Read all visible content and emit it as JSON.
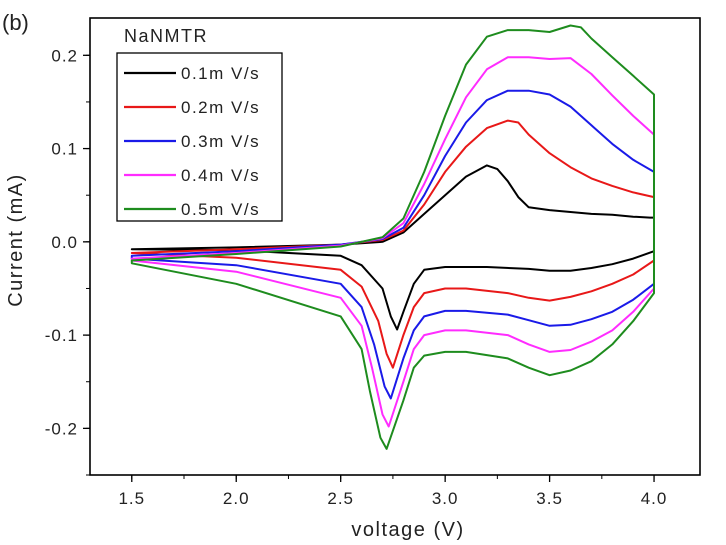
{
  "chart_data": {
    "type": "line",
    "panel_label": "(b)",
    "title": "",
    "legend_title": "NaNMTR",
    "xlabel": "voltage (V)",
    "ylabel": "Current (mA)",
    "xlim": [
      1.3,
      4.22
    ],
    "ylim": [
      -0.25,
      0.24
    ],
    "xticks": [
      1.5,
      2.0,
      2.5,
      3.0,
      3.5,
      4.0
    ],
    "xtick_labels": [
      "1.5",
      "2.0",
      "2.5",
      "3.0",
      "3.5",
      "4.0"
    ],
    "yticks": [
      -0.2,
      -0.1,
      0.0,
      0.1,
      0.2
    ],
    "ytick_labels": [
      "-0.2",
      "-0.1",
      "0.0",
      "0.1",
      "0.2"
    ],
    "grid": false,
    "legend_position": "top-left",
    "series": [
      {
        "name": "0.1m V/s",
        "color": "#000000",
        "anodic": [
          [
            1.5,
            -0.008
          ],
          [
            2.0,
            -0.006
          ],
          [
            2.5,
            -0.003
          ],
          [
            2.7,
            0.0
          ],
          [
            2.8,
            0.01
          ],
          [
            2.9,
            0.03
          ],
          [
            3.0,
            0.05
          ],
          [
            3.1,
            0.07
          ],
          [
            3.2,
            0.082
          ],
          [
            3.25,
            0.078
          ],
          [
            3.3,
            0.065
          ],
          [
            3.35,
            0.048
          ],
          [
            3.4,
            0.037
          ],
          [
            3.5,
            0.034
          ],
          [
            3.6,
            0.032
          ],
          [
            3.7,
            0.03
          ],
          [
            3.8,
            0.029
          ],
          [
            3.9,
            0.027
          ],
          [
            3.98,
            0.026
          ],
          [
            4.0,
            0.026
          ]
        ],
        "cathodic": [
          [
            4.0,
            -0.01
          ],
          [
            3.9,
            -0.018
          ],
          [
            3.8,
            -0.024
          ],
          [
            3.7,
            -0.028
          ],
          [
            3.6,
            -0.031
          ],
          [
            3.5,
            -0.031
          ],
          [
            3.4,
            -0.029
          ],
          [
            3.2,
            -0.027
          ],
          [
            3.0,
            -0.027
          ],
          [
            2.9,
            -0.03
          ],
          [
            2.85,
            -0.045
          ],
          [
            2.8,
            -0.075
          ],
          [
            2.77,
            -0.094
          ],
          [
            2.74,
            -0.08
          ],
          [
            2.7,
            -0.05
          ],
          [
            2.6,
            -0.025
          ],
          [
            2.5,
            -0.015
          ],
          [
            2.0,
            -0.009
          ],
          [
            1.5,
            -0.008
          ]
        ]
      },
      {
        "name": "0.2m V/s",
        "color": "#e81818",
        "anodic": [
          [
            1.5,
            -0.012
          ],
          [
            2.0,
            -0.008
          ],
          [
            2.5,
            -0.003
          ],
          [
            2.7,
            0.002
          ],
          [
            2.8,
            0.012
          ],
          [
            2.9,
            0.04
          ],
          [
            3.0,
            0.075
          ],
          [
            3.1,
            0.102
          ],
          [
            3.2,
            0.122
          ],
          [
            3.3,
            0.13
          ],
          [
            3.35,
            0.128
          ],
          [
            3.4,
            0.115
          ],
          [
            3.5,
            0.095
          ],
          [
            3.6,
            0.08
          ],
          [
            3.7,
            0.068
          ],
          [
            3.8,
            0.06
          ],
          [
            3.9,
            0.053
          ],
          [
            4.0,
            0.048
          ]
        ],
        "cathodic": [
          [
            4.0,
            -0.02
          ],
          [
            3.9,
            -0.035
          ],
          [
            3.8,
            -0.045
          ],
          [
            3.7,
            -0.053
          ],
          [
            3.6,
            -0.059
          ],
          [
            3.5,
            -0.063
          ],
          [
            3.4,
            -0.06
          ],
          [
            3.3,
            -0.055
          ],
          [
            3.1,
            -0.05
          ],
          [
            3.0,
            -0.05
          ],
          [
            2.9,
            -0.055
          ],
          [
            2.85,
            -0.07
          ],
          [
            2.8,
            -0.1
          ],
          [
            2.75,
            -0.135
          ],
          [
            2.72,
            -0.12
          ],
          [
            2.68,
            -0.085
          ],
          [
            2.6,
            -0.048
          ],
          [
            2.5,
            -0.03
          ],
          [
            2.0,
            -0.017
          ],
          [
            1.5,
            -0.012
          ]
        ]
      },
      {
        "name": "0.3m V/s",
        "color": "#1a1ae8",
        "anodic": [
          [
            1.5,
            -0.015
          ],
          [
            2.0,
            -0.01
          ],
          [
            2.5,
            -0.003
          ],
          [
            2.7,
            0.003
          ],
          [
            2.8,
            0.015
          ],
          [
            2.9,
            0.05
          ],
          [
            3.0,
            0.092
          ],
          [
            3.1,
            0.128
          ],
          [
            3.2,
            0.152
          ],
          [
            3.3,
            0.162
          ],
          [
            3.4,
            0.162
          ],
          [
            3.5,
            0.158
          ],
          [
            3.6,
            0.145
          ],
          [
            3.7,
            0.125
          ],
          [
            3.8,
            0.105
          ],
          [
            3.9,
            0.088
          ],
          [
            4.0,
            0.075
          ]
        ],
        "cathodic": [
          [
            4.0,
            -0.045
          ],
          [
            3.9,
            -0.062
          ],
          [
            3.8,
            -0.075
          ],
          [
            3.7,
            -0.083
          ],
          [
            3.6,
            -0.089
          ],
          [
            3.5,
            -0.09
          ],
          [
            3.4,
            -0.084
          ],
          [
            3.3,
            -0.078
          ],
          [
            3.1,
            -0.074
          ],
          [
            3.0,
            -0.074
          ],
          [
            2.9,
            -0.08
          ],
          [
            2.85,
            -0.095
          ],
          [
            2.8,
            -0.125
          ],
          [
            2.74,
            -0.168
          ],
          [
            2.71,
            -0.155
          ],
          [
            2.66,
            -0.11
          ],
          [
            2.6,
            -0.07
          ],
          [
            2.5,
            -0.045
          ],
          [
            2.0,
            -0.025
          ],
          [
            1.5,
            -0.018
          ]
        ]
      },
      {
        "name": "0.4m V/s",
        "color": "#ff2cff",
        "anodic": [
          [
            1.5,
            -0.018
          ],
          [
            2.0,
            -0.012
          ],
          [
            2.5,
            -0.004
          ],
          [
            2.7,
            0.004
          ],
          [
            2.8,
            0.02
          ],
          [
            2.9,
            0.062
          ],
          [
            3.0,
            0.11
          ],
          [
            3.1,
            0.155
          ],
          [
            3.2,
            0.185
          ],
          [
            3.3,
            0.198
          ],
          [
            3.4,
            0.198
          ],
          [
            3.5,
            0.196
          ],
          [
            3.6,
            0.197
          ],
          [
            3.7,
            0.18
          ],
          [
            3.8,
            0.157
          ],
          [
            3.9,
            0.135
          ],
          [
            4.0,
            0.115
          ]
        ],
        "cathodic": [
          [
            4.0,
            -0.05
          ],
          [
            3.9,
            -0.075
          ],
          [
            3.8,
            -0.095
          ],
          [
            3.7,
            -0.107
          ],
          [
            3.6,
            -0.116
          ],
          [
            3.5,
            -0.118
          ],
          [
            3.4,
            -0.11
          ],
          [
            3.3,
            -0.1
          ],
          [
            3.1,
            -0.095
          ],
          [
            3.0,
            -0.095
          ],
          [
            2.9,
            -0.1
          ],
          [
            2.85,
            -0.115
          ],
          [
            2.8,
            -0.15
          ],
          [
            2.73,
            -0.198
          ],
          [
            2.7,
            -0.185
          ],
          [
            2.65,
            -0.135
          ],
          [
            2.6,
            -0.09
          ],
          [
            2.5,
            -0.06
          ],
          [
            2.0,
            -0.032
          ],
          [
            1.5,
            -0.02
          ]
        ]
      },
      {
        "name": "0.5m V/s",
        "color": "#1e8c1e",
        "anodic": [
          [
            1.5,
            -0.02
          ],
          [
            2.0,
            -0.013
          ],
          [
            2.5,
            -0.005
          ],
          [
            2.7,
            0.005
          ],
          [
            2.8,
            0.025
          ],
          [
            2.9,
            0.075
          ],
          [
            3.0,
            0.135
          ],
          [
            3.1,
            0.19
          ],
          [
            3.2,
            0.22
          ],
          [
            3.3,
            0.227
          ],
          [
            3.4,
            0.227
          ],
          [
            3.5,
            0.225
          ],
          [
            3.6,
            0.232
          ],
          [
            3.65,
            0.23
          ],
          [
            3.7,
            0.218
          ],
          [
            3.8,
            0.198
          ],
          [
            3.9,
            0.178
          ],
          [
            4.0,
            0.158
          ]
        ],
        "cathodic": [
          [
            4.0,
            -0.055
          ],
          [
            3.9,
            -0.085
          ],
          [
            3.8,
            -0.11
          ],
          [
            3.7,
            -0.128
          ],
          [
            3.6,
            -0.138
          ],
          [
            3.5,
            -0.143
          ],
          [
            3.4,
            -0.135
          ],
          [
            3.3,
            -0.125
          ],
          [
            3.1,
            -0.118
          ],
          [
            3.0,
            -0.118
          ],
          [
            2.9,
            -0.122
          ],
          [
            2.85,
            -0.135
          ],
          [
            2.8,
            -0.17
          ],
          [
            2.72,
            -0.222
          ],
          [
            2.69,
            -0.21
          ],
          [
            2.64,
            -0.16
          ],
          [
            2.6,
            -0.115
          ],
          [
            2.5,
            -0.08
          ],
          [
            2.0,
            -0.045
          ],
          [
            1.5,
            -0.023
          ]
        ]
      }
    ]
  }
}
